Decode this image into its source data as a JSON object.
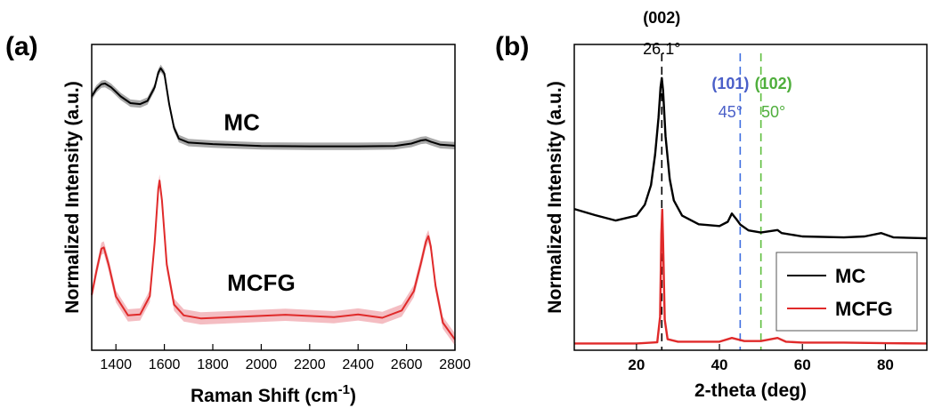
{
  "chart_data": [
    {
      "panel": "(a)",
      "type": "line",
      "xlabel": "Raman Shift (cm",
      "xlabel_sup": "-1",
      "xlabel_close": ")",
      "ylabel": "Normalized Intensity (a.u.)",
      "xlim": [
        1300,
        2800
      ],
      "ylim": [
        0,
        1
      ],
      "x_ticks": [
        1400,
        1600,
        1800,
        2000,
        2200,
        2400,
        2600,
        2800
      ],
      "y_ticks_labeled": false,
      "bands": {
        "D": 1350,
        "G": 1580,
        "2D": 2690
      },
      "series": [
        {
          "name": "MC",
          "color": "#000000",
          "band_color": "#a0a0a0",
          "x": [
            1300,
            1320,
            1340,
            1355,
            1380,
            1420,
            1460,
            1500,
            1530,
            1560,
            1575,
            1585,
            1600,
            1620,
            1640,
            1660,
            1700,
            1800,
            2000,
            2200,
            2400,
            2550,
            2620,
            2660,
            2680,
            2700,
            2740,
            2800
          ],
          "y": [
            0.83,
            0.855,
            0.87,
            0.872,
            0.86,
            0.83,
            0.808,
            0.805,
            0.815,
            0.86,
            0.908,
            0.922,
            0.905,
            0.805,
            0.727,
            0.692,
            0.679,
            0.674,
            0.668,
            0.667,
            0.667,
            0.668,
            0.676,
            0.686,
            0.688,
            0.682,
            0.672,
            0.669
          ]
        },
        {
          "name": "MCFG",
          "color": "#e02a2a",
          "band_color": "#f3b6bb",
          "x": [
            1300,
            1320,
            1340,
            1350,
            1370,
            1400,
            1450,
            1500,
            1540,
            1560,
            1575,
            1580,
            1590,
            1610,
            1640,
            1680,
            1750,
            1900,
            2100,
            2300,
            2400,
            2500,
            2580,
            2630,
            2660,
            2680,
            2690,
            2700,
            2720,
            2750,
            2800
          ],
          "y": [
            0.181,
            0.26,
            0.332,
            0.336,
            0.28,
            0.176,
            0.114,
            0.117,
            0.177,
            0.352,
            0.528,
            0.555,
            0.49,
            0.28,
            0.149,
            0.114,
            0.104,
            0.109,
            0.116,
            0.108,
            0.117,
            0.106,
            0.13,
            0.193,
            0.286,
            0.355,
            0.373,
            0.34,
            0.21,
            0.09,
            0.035
          ]
        }
      ]
    },
    {
      "panel": "(b)",
      "type": "line",
      "xlabel": "2-theta (deg)",
      "ylabel": "Normalized Intensity (a.u.)",
      "xlim": [
        5,
        90
      ],
      "ylim": [
        0,
        1
      ],
      "x_ticks": [
        20,
        40,
        60,
        80
      ],
      "y_ticks_labeled": false,
      "legend": {
        "position": "bottom-right",
        "entries": [
          "MC",
          "MCFG"
        ]
      },
      "reference_lines": [
        {
          "hkl": "(002)",
          "angle_label": "26.1°",
          "x": 26.1,
          "color": "#000000",
          "label_color": "#000000"
        },
        {
          "hkl": "(101)",
          "angle_label": "45°",
          "x": 45,
          "color": "#3f6fe0",
          "label_color": "#4a5fc8"
        },
        {
          "hkl": "(102)",
          "angle_label": "50°",
          "x": 50,
          "color": "#5fbf3f",
          "label_color": "#4fae3c"
        }
      ],
      "series": [
        {
          "name": "MC",
          "color": "#000000",
          "x": [
            5,
            10,
            15,
            20,
            22,
            23.5,
            24.5,
            25.3,
            25.8,
            26.1,
            26.4,
            27,
            28,
            29,
            31,
            35,
            40,
            42,
            43,
            44,
            45,
            47,
            50,
            54,
            55,
            60,
            70,
            75,
            79,
            82,
            90
          ],
          "y": [
            0.462,
            0.442,
            0.424,
            0.44,
            0.476,
            0.54,
            0.64,
            0.76,
            0.86,
            0.89,
            0.85,
            0.7,
            0.56,
            0.49,
            0.44,
            0.412,
            0.406,
            0.42,
            0.447,
            0.43,
            0.411,
            0.392,
            0.385,
            0.393,
            0.383,
            0.372,
            0.369,
            0.372,
            0.383,
            0.369,
            0.366
          ]
        },
        {
          "name": "MCFG",
          "color": "#e02a2a",
          "x": [
            5,
            20,
            25,
            25.7,
            26.0,
            26.2,
            26.4,
            26.8,
            27.5,
            30,
            35,
            40,
            43,
            46,
            50,
            54,
            56,
            60,
            70,
            80,
            90
          ],
          "y": [
            0.022,
            0.022,
            0.026,
            0.11,
            0.38,
            0.46,
            0.36,
            0.1,
            0.036,
            0.028,
            0.028,
            0.028,
            0.04,
            0.03,
            0.03,
            0.04,
            0.028,
            0.025,
            0.025,
            0.023,
            0.022
          ]
        }
      ]
    }
  ]
}
